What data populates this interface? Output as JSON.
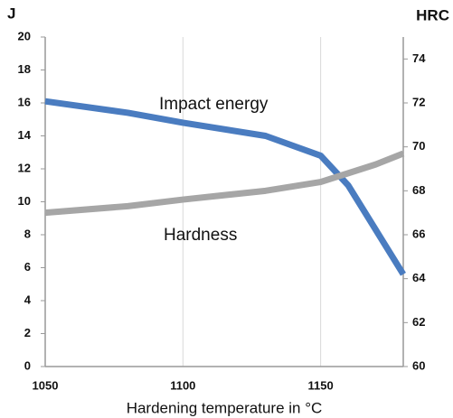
{
  "chart_data": {
    "type": "line",
    "xlabel": "Hardening temperature in °C",
    "ylabel": "J",
    "y2label": "HRC",
    "x": [
      1050,
      1080,
      1100,
      1130,
      1150,
      1160,
      1170,
      1180
    ],
    "series": [
      {
        "name": "Impact energy",
        "color": "#4a7cc0",
        "values": [
          16.1,
          15.4,
          14.8,
          14.0,
          12.8,
          11.0,
          8.3,
          5.6
        ]
      },
      {
        "name": "Hardness",
        "color": "#a6a6a6",
        "axis": "y2",
        "values": [
          67.0,
          67.3,
          67.6,
          68.0,
          68.4,
          68.8,
          69.2,
          69.7
        ]
      }
    ],
    "xlim": [
      1050,
      1180
    ],
    "xticks": [
      1050,
      1100,
      1150
    ],
    "ylim": [
      0,
      20
    ],
    "yticks": [
      0,
      2,
      4,
      6,
      8,
      10,
      12,
      14,
      16,
      18,
      20
    ],
    "y2lim": [
      60,
      75
    ],
    "y2ticks": [
      60,
      62,
      64,
      66,
      68,
      70,
      72,
      74
    ],
    "grid": "x"
  }
}
